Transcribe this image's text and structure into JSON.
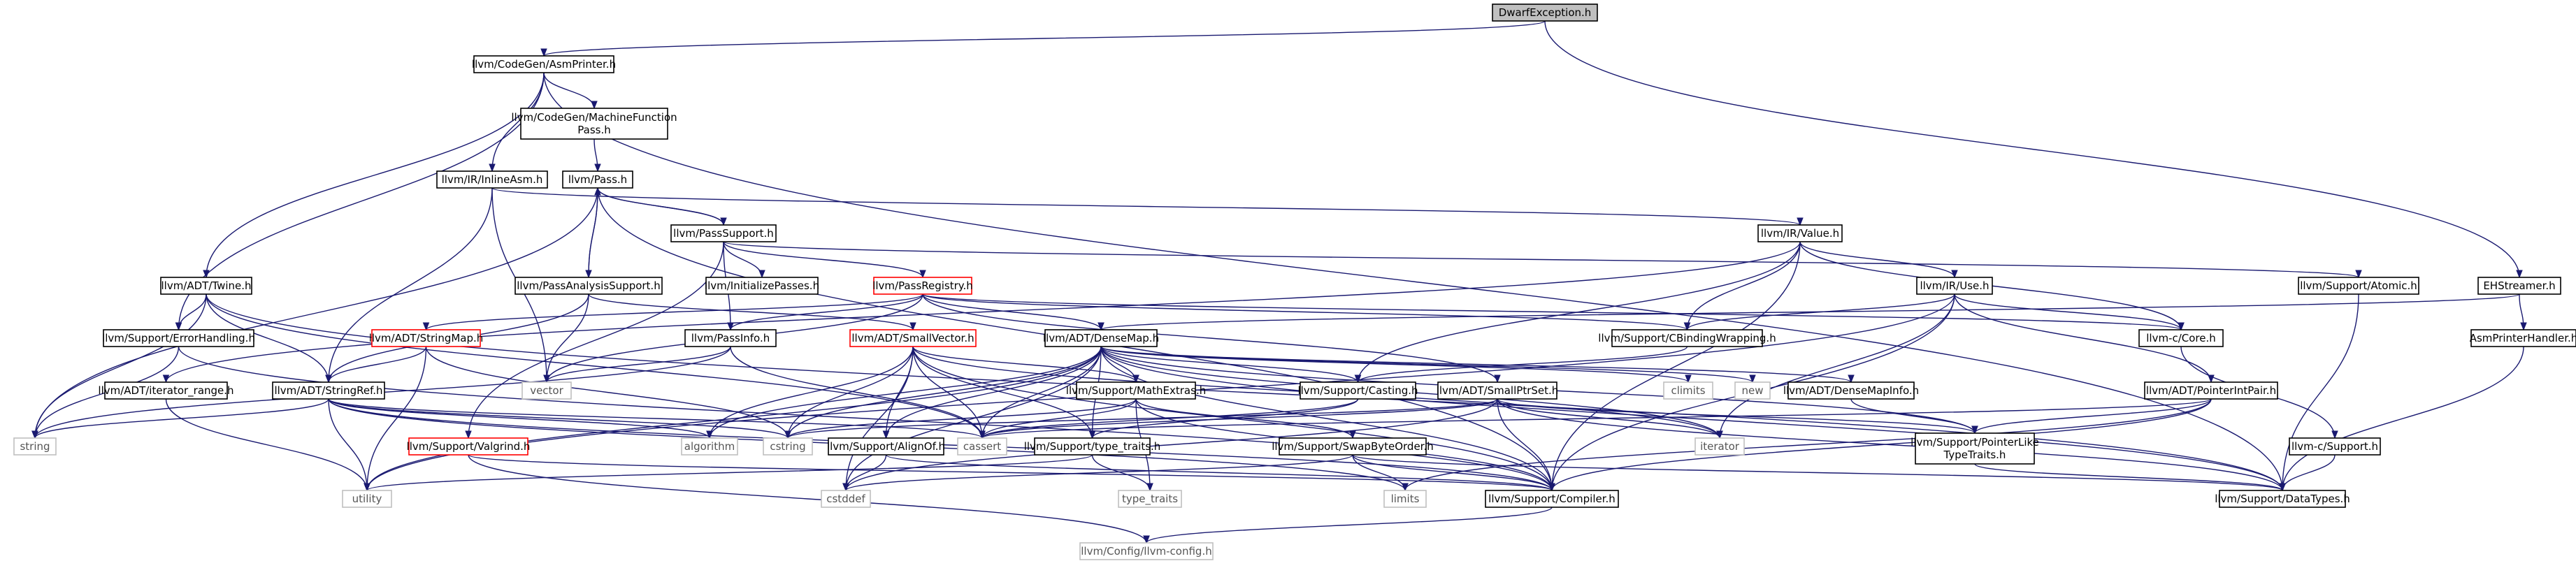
{
  "title": "DwarfException.h",
  "nodes": {
    "dwarf": [
      "DwarfException.h"
    ],
    "asmprinter": [
      "llvm/CodeGen/AsmPrinter.h"
    ],
    "mfpass": [
      "llvm/CodeGen/MachineFunction",
      "Pass.h"
    ],
    "inlineasm": [
      "llvm/IR/InlineAsm.h"
    ],
    "pass": [
      "llvm/Pass.h"
    ],
    "passsupport": [
      "llvm/PassSupport.h"
    ],
    "twine": [
      "llvm/ADT/Twine.h"
    ],
    "passanalysis": [
      "llvm/PassAnalysisSupport.h"
    ],
    "initpasses": [
      "llvm/InitializePasses.h"
    ],
    "passregistry": [
      "llvm/PassRegistry.h"
    ],
    "value": [
      "llvm/IR/Value.h"
    ],
    "use": [
      "llvm/IR/Use.h"
    ],
    "atomic": [
      "llvm/Support/Atomic.h"
    ],
    "ehstreamer": [
      "EHStreamer.h"
    ],
    "errorhandling": [
      "llvm/Support/ErrorHandling.h"
    ],
    "stringmap": [
      "llvm/ADT/StringMap.h"
    ],
    "passinfo": [
      "llvm/PassInfo.h"
    ],
    "smallvector": [
      "llvm/ADT/SmallVector.h"
    ],
    "densemap": [
      "llvm/ADT/DenseMap.h"
    ],
    "cbinding": [
      "llvm/Support/CBindingWrapping.h"
    ],
    "core": [
      "llvm-c/Core.h"
    ],
    "asmprinterhandler": [
      "AsmPrinterHandler.h"
    ],
    "iterrange": [
      "llvm/ADT/iterator_range.h"
    ],
    "stringref": [
      "llvm/ADT/StringRef.h"
    ],
    "string": [
      "string"
    ],
    "vector": [
      "vector"
    ],
    "casting": [
      "llvm/Support/Casting.h"
    ],
    "mathextras": [
      "llvm/Support/MathExtras.h"
    ],
    "smallptrset": [
      "llvm/ADT/SmallPtrSet.h"
    ],
    "climits": [
      "climits"
    ],
    "new": [
      "new"
    ],
    "densemapinfo": [
      "llvm/ADT/DenseMapInfo.h"
    ],
    "pointerintpair": [
      "llvm/ADT/PointerIntPair.h"
    ],
    "valgrind": [
      "llvm/Support/Valgrind.h"
    ],
    "algorithm": [
      "algorithm"
    ],
    "cstring": [
      "cstring"
    ],
    "alignof": [
      "llvm/Support/AlignOf.h"
    ],
    "cassert": [
      "cassert"
    ],
    "typetraits": [
      "llvm/Support/type_traits.h"
    ],
    "swapbyteorder": [
      "llvm/Support/SwapByteOrder.h"
    ],
    "iterator": [
      "iterator"
    ],
    "pointerlike": [
      "llvm/Support/PointerLike",
      "TypeTraits.h"
    ],
    "csupport": [
      "llvm-c/Support.h"
    ],
    "utility": [
      "utility"
    ],
    "cstddef": [
      "cstddef"
    ],
    "typetraitsstd": [
      "type_traits"
    ],
    "limits": [
      "limits"
    ],
    "compiler": [
      "llvm/Support/Compiler.h"
    ],
    "datatypes": [
      "llvm/Support/DataTypes.h"
    ],
    "config": [
      "llvm/Config/llvm-config.h"
    ]
  },
  "colors": {
    "root_fill": "#bfbfbf",
    "root_border": "#000000",
    "node_border": "#000000",
    "missing_doc_border": "#ff0000",
    "system_border": "#bfbfbf",
    "edge": "#191970"
  }
}
